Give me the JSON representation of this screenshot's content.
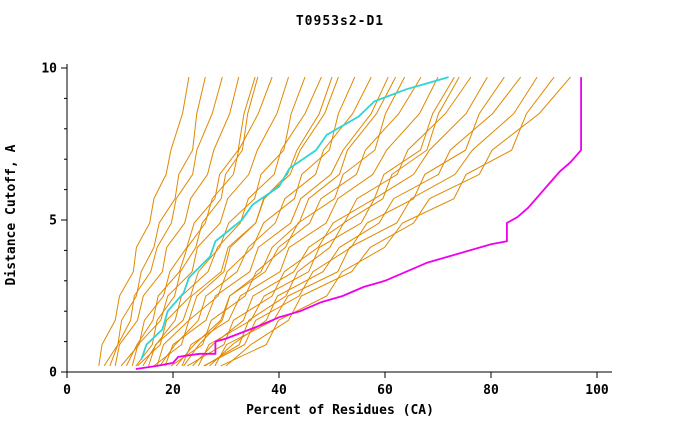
{
  "title": "T0953s2-D1",
  "colors": {
    "model": "#e08800",
    "highlight_cyan": "#2fd4d4",
    "highlight_magenta": "#ee00ee",
    "axis": "#000000",
    "text": "#000000",
    "background": "#ffffff"
  },
  "chart_data": {
    "type": "line",
    "title": "T0953s2-D1",
    "xlabel": "Percent of Residues (CA)",
    "ylabel": "Distance Cutoff, A",
    "xlim": [
      0,
      100
    ],
    "ylim": [
      0,
      10
    ],
    "grid": false,
    "legend": false,
    "x_ticks": {
      "major": [
        0,
        20,
        40,
        60,
        80,
        100
      ]
    },
    "y_ticks": {
      "major": [
        0,
        5,
        10
      ],
      "minor": [
        1,
        2,
        3,
        4,
        6,
        7,
        8,
        9
      ]
    },
    "model_curves": {
      "color_role": "model",
      "y_levels": [
        0.2,
        0.9,
        1.7,
        2.5,
        3.3,
        4.1,
        4.9,
        5.7,
        6.5,
        7.3,
        8.5,
        9.7
      ],
      "x_series": [
        [
          6,
          6.6,
          9.1,
          9.9,
          12.5,
          13.1,
          15.6,
          16.4,
          18.7,
          19.6,
          21.8,
          23
        ],
        [
          7,
          9.6,
          10.3,
          13.1,
          14,
          16.4,
          17.4,
          20.4,
          21.1,
          23.7,
          24.5,
          26.1
        ],
        [
          8.1,
          9.6,
          12,
          12.7,
          15.8,
          17,
          19.7,
          20.6,
          23.7,
          24.5,
          27.4,
          29.3
        ],
        [
          9.1,
          9.9,
          13.3,
          14.4,
          18,
          18.8,
          22.2,
          23.3,
          26.5,
          27.7,
          30.7,
          32.4
        ],
        [
          10.2,
          13.6,
          14.6,
          18.2,
          19.4,
          22.6,
          24,
          27.9,
          28.8,
          32.3,
          33.4,
          35.5
        ],
        [
          11.2,
          13.2,
          16.2,
          17.2,
          21.2,
          22.7,
          26.1,
          27.4,
          31.4,
          32.4,
          36.1,
          38.7
        ],
        [
          12.3,
          13.4,
          17.7,
          19,
          23.6,
          24.6,
          28.9,
          30.3,
          34.3,
          35.9,
          39.6,
          41.8
        ],
        [
          13.3,
          17.6,
          18.8,
          23.3,
          24.8,
          28.8,
          30.5,
          35.4,
          36.6,
          40.9,
          42.3,
          44.9
        ],
        [
          14.3,
          16.8,
          20.4,
          21.6,
          26.6,
          28.4,
          32.7,
          34.2,
          39.1,
          40.4,
          44.9,
          48
        ],
        [
          15.4,
          16.7,
          21.9,
          23.5,
          29.1,
          30.4,
          35.6,
          37.2,
          42.1,
          44,
          48.6,
          51.2
        ],
        [
          16.4,
          21.6,
          23,
          28.5,
          30.2,
          35,
          37.1,
          42.9,
          44.3,
          49.5,
          51.2,
          54.3
        ],
        [
          17.5,
          20.4,
          24.8,
          26.2,
          32.1,
          34.2,
          39.3,
          41.1,
          46.9,
          48.4,
          53.9,
          57.4
        ],
        [
          18.5,
          20,
          26.2,
          28,
          34.5,
          36.1,
          42.2,
          44.1,
          49.8,
          52.1,
          57.4,
          60.6
        ],
        [
          19.6,
          25.6,
          27.2,
          33.6,
          35.7,
          41.2,
          43.6,
          50.5,
          52.1,
          58.1,
          60.1,
          63.7
        ],
        [
          20.6,
          24,
          29,
          30.7,
          37.4,
          39.9,
          45.8,
          47.9,
          54.6,
          56.3,
          62.6,
          66.8
        ],
        [
          21.7,
          23.4,
          30.5,
          32.7,
          40.2,
          41.9,
          48.9,
          51.1,
          57.7,
          60.3,
          66.5,
          70
        ],
        [
          22.7,
          29.6,
          31.4,
          38.7,
          41,
          47.4,
          50.2,
          58,
          59.8,
          66.7,
          69,
          73.1
        ],
        [
          23.7,
          27.5,
          33.3,
          35.1,
          42.8,
          45.6,
          52.3,
          54.7,
          62.3,
          64.3,
          71.4,
          76.2
        ],
        [
          24.8,
          26.8,
          34.7,
          37.2,
          45.6,
          47.6,
          55.5,
          58,
          65.4,
          68.4,
          75.3,
          79.3
        ],
        [
          25.8,
          33.5,
          35.6,
          43.8,
          46.4,
          53.6,
          56.6,
          65.4,
          67.5,
          75.2,
          77.8,
          82.5
        ],
        [
          26.9,
          31.2,
          37.6,
          39.7,
          48.3,
          51.4,
          58.9,
          61.6,
          70.1,
          72.3,
          80.3,
          85.6
        ],
        [
          27.9,
          30.1,
          39,
          41.7,
          51.1,
          53.3,
          62.2,
          64.9,
          73.2,
          76.5,
          84.3,
          88.7
        ],
        [
          29,
          37.6,
          39.9,
          49,
          51.9,
          59.9,
          63.3,
          73,
          75.3,
          83.9,
          86.7,
          91.9
        ],
        [
          30,
          34.7,
          41.8,
          44.2,
          53.7,
          57.2,
          65.4,
          68.4,
          77.8,
          80.2,
          89.1,
          95
        ],
        [
          13,
          16.1,
          17,
          20.3,
          21.4,
          24.3,
          25.5,
          29.1,
          29.9,
          33.1,
          34.1,
          36
        ],
        [
          17,
          18.2,
          23,
          24.5,
          29.6,
          30.8,
          35.6,
          37.1,
          41.6,
          43.4,
          47.6,
          50
        ],
        [
          22,
          24.9,
          29.3,
          30.7,
          36.6,
          38.7,
          43.8,
          45.6,
          51.4,
          52.9,
          58.4,
          62
        ],
        [
          26,
          32.5,
          34.3,
          41.3,
          43.5,
          49.6,
          52.2,
          59.6,
          61.3,
          67.9,
          70.1,
          74
        ]
      ]
    },
    "highlight_curves": [
      {
        "name": "cyan-model-curve",
        "color_role": "highlight_cyan",
        "points": [
          [
            14,
            0.4
          ],
          [
            15,
            0.9
          ],
          [
            18,
            1.4
          ],
          [
            19,
            2.0
          ],
          [
            22,
            2.6
          ],
          [
            23,
            3.1
          ],
          [
            27,
            3.8
          ],
          [
            28,
            4.3
          ],
          [
            33,
            5.0
          ],
          [
            35,
            5.5
          ],
          [
            40,
            6.1
          ],
          [
            42,
            6.7
          ],
          [
            47,
            7.3
          ],
          [
            49,
            7.8
          ],
          [
            55,
            8.4
          ],
          [
            58,
            8.9
          ],
          [
            64,
            9.3
          ],
          [
            68,
            9.5
          ],
          [
            72,
            9.7
          ]
        ]
      },
      {
        "name": "magenta-model-curve",
        "color_role": "highlight_magenta",
        "points": [
          [
            13,
            0.1
          ],
          [
            17,
            0.2
          ],
          [
            20,
            0.3
          ],
          [
            21,
            0.5
          ],
          [
            25,
            0.6
          ],
          [
            28,
            0.6
          ],
          [
            28,
            1.0
          ],
          [
            30,
            1.1
          ],
          [
            33,
            1.3
          ],
          [
            36,
            1.5
          ],
          [
            40,
            1.8
          ],
          [
            44,
            2.0
          ],
          [
            48,
            2.3
          ],
          [
            52,
            2.5
          ],
          [
            56,
            2.8
          ],
          [
            60,
            3.0
          ],
          [
            64,
            3.3
          ],
          [
            68,
            3.6
          ],
          [
            72,
            3.8
          ],
          [
            76,
            4.0
          ],
          [
            80,
            4.2
          ],
          [
            83,
            4.3
          ],
          [
            83,
            4.9
          ],
          [
            85,
            5.1
          ],
          [
            87,
            5.4
          ],
          [
            89,
            5.8
          ],
          [
            91,
            6.2
          ],
          [
            93,
            6.6
          ],
          [
            95,
            6.9
          ],
          [
            96,
            7.1
          ],
          [
            97,
            7.3
          ],
          [
            97,
            9.7
          ]
        ]
      }
    ]
  }
}
